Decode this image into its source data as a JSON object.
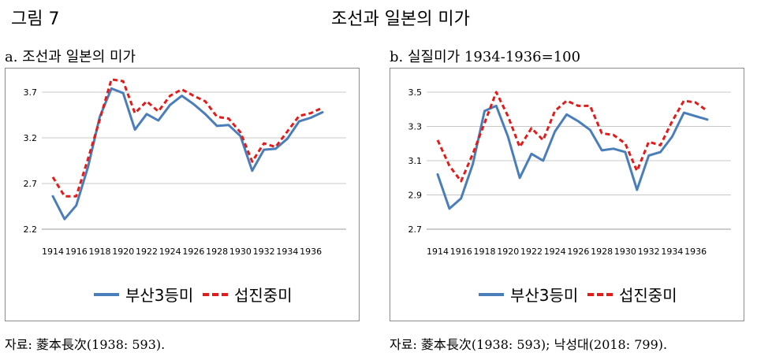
{
  "figure": {
    "label": "그림 7",
    "title": "조선과 일본의 미가"
  },
  "panels": [
    {
      "subtitle": "a. 조선과 일본의 미가",
      "source": "자료: 菱本長次(1938: 593).",
      "legend": [
        "부산3등미",
        "섭진중미"
      ]
    },
    {
      "subtitle": "b. 실질미가 1934-1936=100",
      "source": "자료: 菱本長次(1938: 593); 낙성대(2018: 799).",
      "legend": [
        "부산3등미",
        "섭진중미"
      ]
    }
  ],
  "chart_data": [
    {
      "type": "line",
      "x": [
        1914,
        1915,
        1916,
        1917,
        1918,
        1919,
        1920,
        1921,
        1922,
        1923,
        1924,
        1925,
        1926,
        1927,
        1928,
        1929,
        1930,
        1931,
        1932,
        1933,
        1934,
        1935,
        1936,
        1937
      ],
      "x_tick_labels": [
        "1914",
        "1916",
        "1918",
        "1920",
        "1922",
        "1924",
        "1926",
        "1928",
        "1930",
        "1932",
        "1934",
        "1936"
      ],
      "y_ticks": [
        2.2,
        2.7,
        3.2,
        3.7
      ],
      "ylim": [
        2.2,
        3.9
      ],
      "grid": true,
      "legend_position": "bottom",
      "series": [
        {
          "name": "부산3등미",
          "color": "#4a7ebb",
          "style": "solid",
          "values": [
            2.56,
            2.31,
            2.46,
            2.88,
            3.43,
            3.74,
            3.69,
            3.29,
            3.46,
            3.39,
            3.56,
            3.66,
            3.57,
            3.46,
            3.33,
            3.34,
            3.22,
            2.84,
            3.07,
            3.08,
            3.19,
            3.38,
            3.42,
            3.48
          ]
        },
        {
          "name": "섭진중미",
          "color": "#e21b1b",
          "style": "dashed",
          "values": [
            2.77,
            2.56,
            2.56,
            2.97,
            3.4,
            3.84,
            3.82,
            3.47,
            3.6,
            3.49,
            3.66,
            3.73,
            3.66,
            3.6,
            3.43,
            3.41,
            3.26,
            2.94,
            3.14,
            3.1,
            3.27,
            3.44,
            3.47,
            3.53
          ]
        }
      ]
    },
    {
      "type": "line",
      "x": [
        1914,
        1915,
        1916,
        1917,
        1918,
        1919,
        1920,
        1921,
        1922,
        1923,
        1924,
        1925,
        1926,
        1927,
        1928,
        1929,
        1930,
        1931,
        1932,
        1933,
        1934,
        1935,
        1936,
        1937
      ],
      "x_tick_labels": [
        "1914",
        "1916",
        "1918",
        "1920",
        "1922",
        "1924",
        "1926",
        "1928",
        "1930",
        "1932",
        "1934",
        "1936"
      ],
      "y_ticks": [
        2.7,
        2.9,
        3.1,
        3.3,
        3.5
      ],
      "ylim": [
        2.7,
        3.5
      ],
      "grid": true,
      "legend_position": "bottom",
      "series": [
        {
          "name": "부산3등미",
          "color": "#4a7ebb",
          "style": "solid",
          "values": [
            3.02,
            2.82,
            2.88,
            3.08,
            3.39,
            3.42,
            3.24,
            3.0,
            3.14,
            3.1,
            3.27,
            3.37,
            3.33,
            3.28,
            3.16,
            3.17,
            3.15,
            2.93,
            3.13,
            3.15,
            3.24,
            3.38,
            3.36,
            3.34
          ]
        },
        {
          "name": "섭진중미",
          "color": "#e21b1b",
          "style": "dashed",
          "values": [
            3.22,
            3.07,
            2.98,
            3.14,
            3.32,
            3.5,
            3.36,
            3.18,
            3.29,
            3.22,
            3.39,
            3.45,
            3.42,
            3.42,
            3.26,
            3.25,
            3.2,
            3.04,
            3.21,
            3.19,
            3.33,
            3.45,
            3.44,
            3.39
          ]
        }
      ]
    }
  ]
}
